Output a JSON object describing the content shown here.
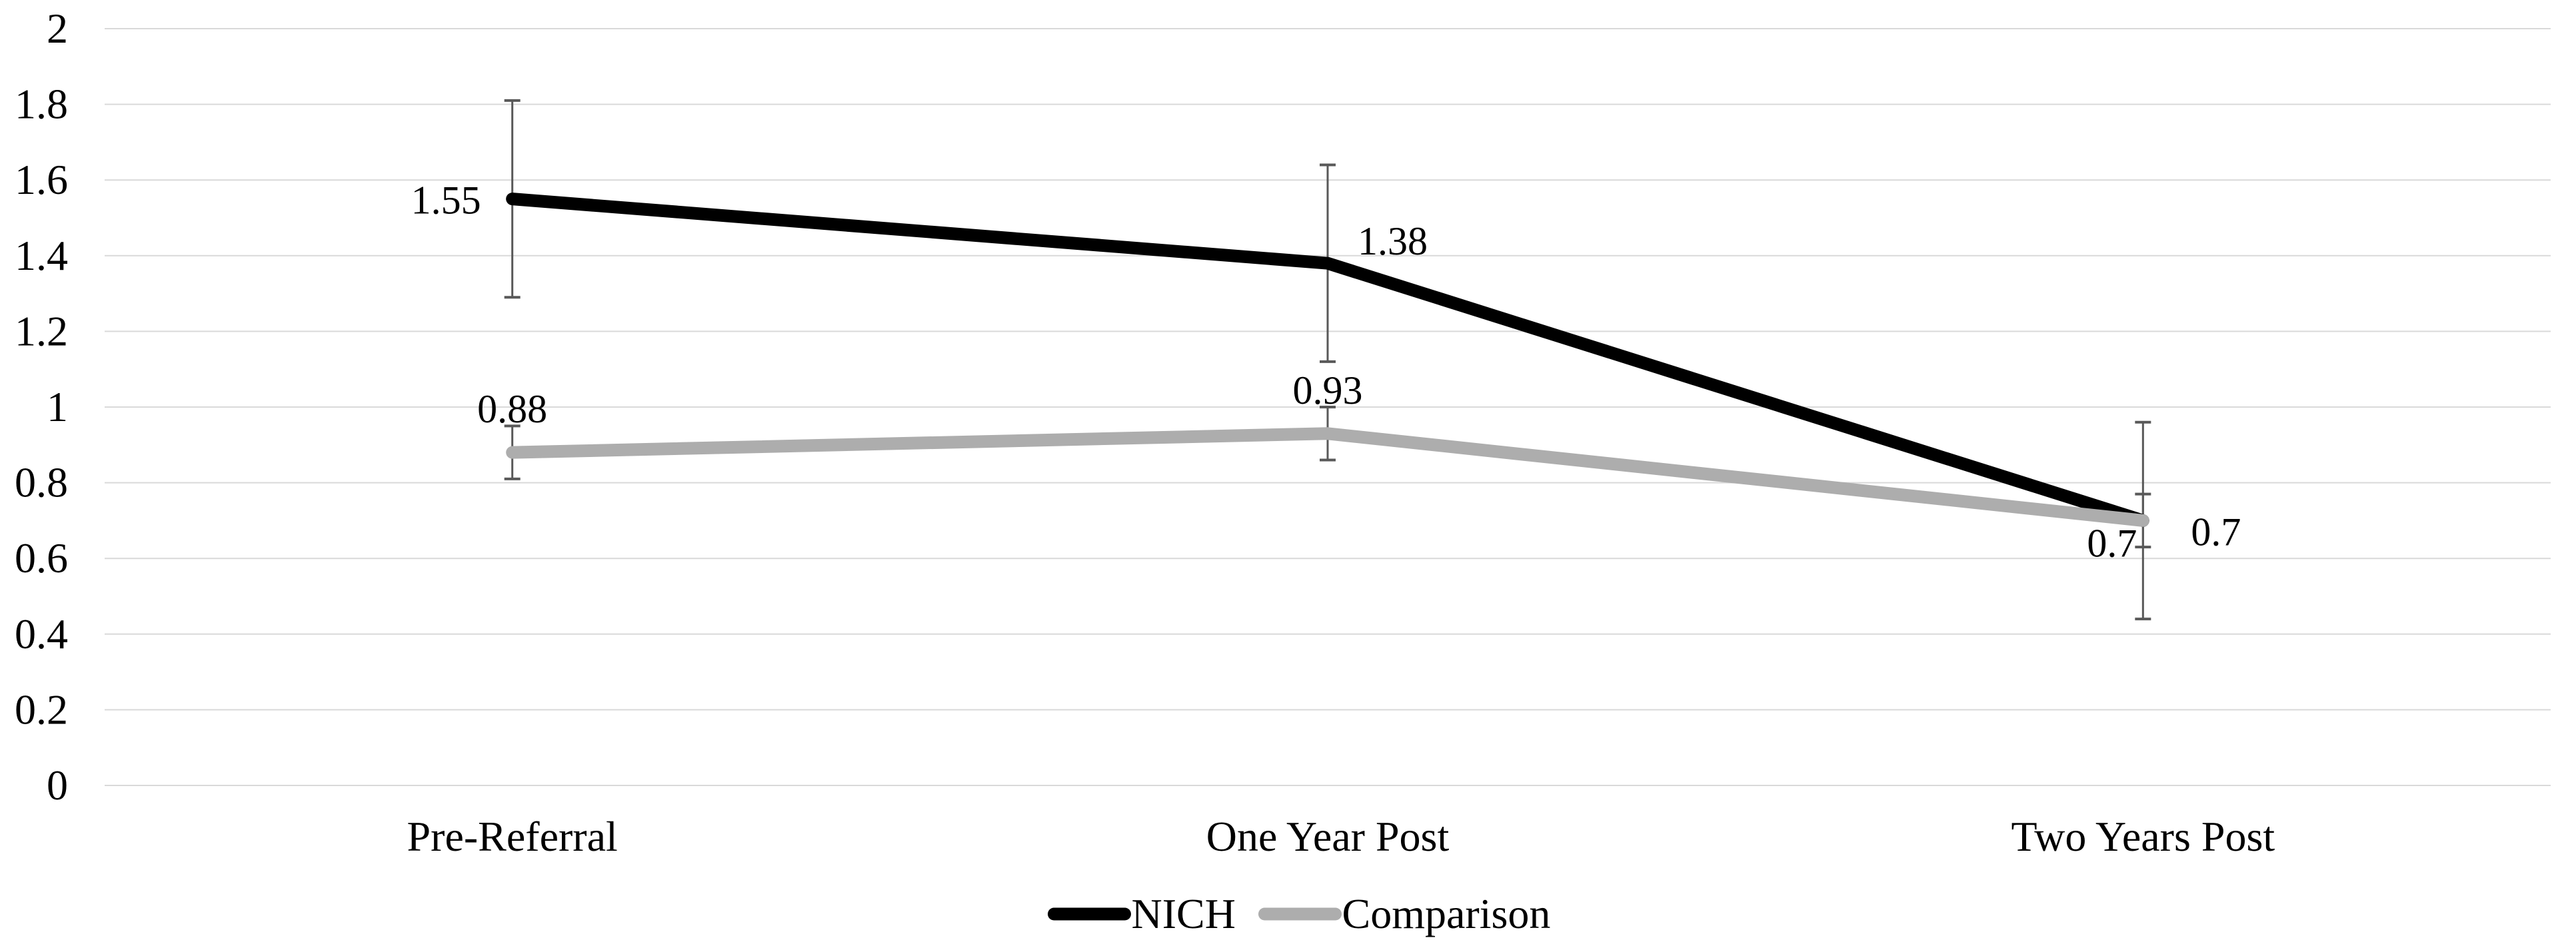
{
  "page": {
    "background": "#FFFFFF"
  },
  "chart_data": {
    "type": "line",
    "title": "",
    "categories": [
      "Pre-Referral",
      "One Year Post",
      "Two Years Post"
    ],
    "series": [
      {
        "name": "NICH",
        "color": "#000000",
        "values": [
          1.55,
          1.38,
          0.7
        ],
        "error_low": [
          1.29,
          1.12,
          0.44
        ],
        "error_high": [
          1.81,
          1.64,
          0.96
        ],
        "data_labels": [
          "1.55",
          "1.38",
          "0.7"
        ]
      },
      {
        "name": "Comparison",
        "color": "#ADADAD",
        "values": [
          0.88,
          0.93,
          0.7
        ],
        "error_low": [
          0.81,
          0.86,
          0.63
        ],
        "error_high": [
          0.95,
          1.0,
          0.77
        ],
        "data_labels": [
          "0.88",
          "0.93",
          "0.7"
        ]
      }
    ],
    "y_axis": {
      "min": 0,
      "max": 2,
      "step": 0.2,
      "tick_labels": [
        "2",
        "1.8",
        "1.6",
        "1.4",
        "1.2",
        "1",
        "0.8",
        "0.6",
        "0.4",
        "0.2",
        "0"
      ]
    },
    "legend": {
      "position": "bottom"
    },
    "grid": true,
    "styles": {
      "gridline_color": "#D9D9D9",
      "error_bar_color": "#595959",
      "text_color": "#000000",
      "background": "#FFFFFF"
    }
  }
}
